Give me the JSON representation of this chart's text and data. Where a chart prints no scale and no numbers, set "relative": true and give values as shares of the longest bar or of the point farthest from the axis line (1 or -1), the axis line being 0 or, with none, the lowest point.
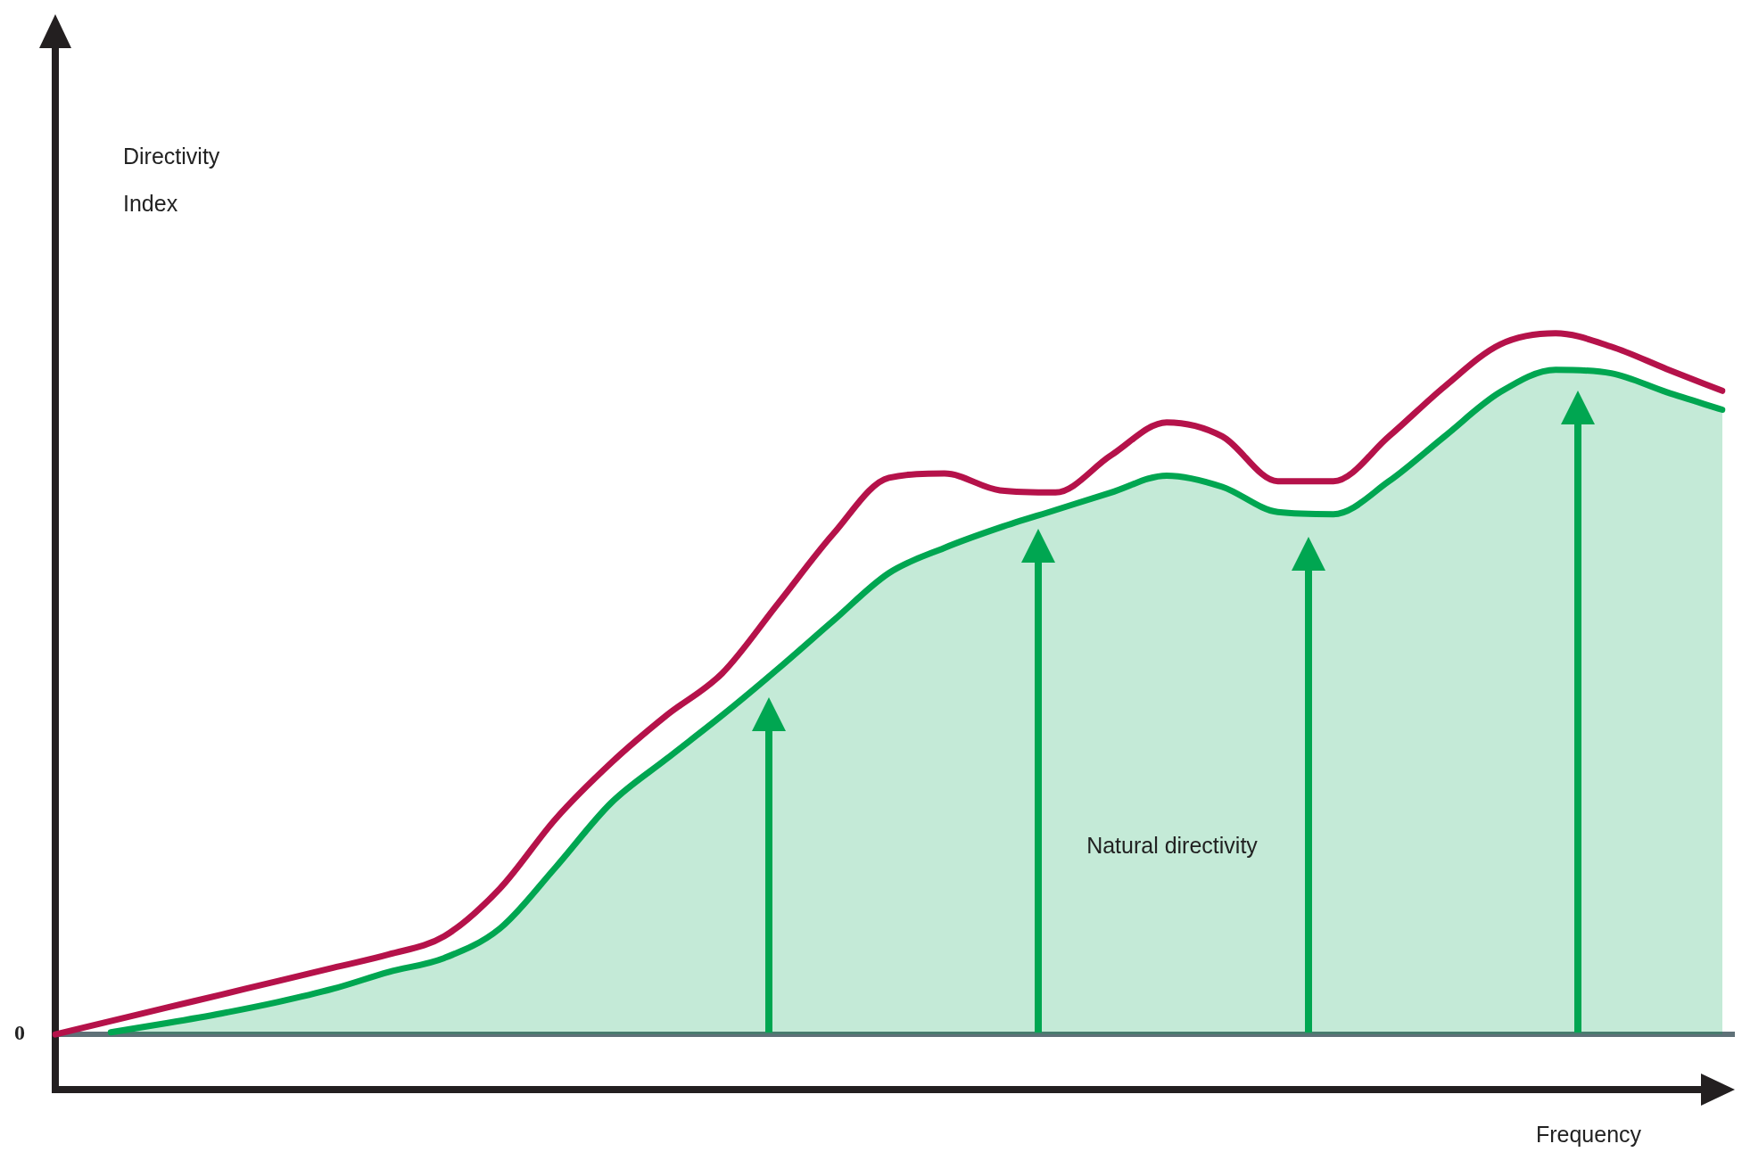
{
  "chart_data": {
    "type": "line",
    "relative": true,
    "xlabel": "Frequency",
    "categories": [
      null,
      null,
      null,
      null,
      null,
      null,
      null,
      null,
      null,
      null,
      null,
      null,
      null,
      null,
      null,
      null,
      null,
      null,
      null,
      null,
      null,
      null,
      null,
      null,
      null,
      null,
      null,
      null,
      null,
      null,
      null
    ],
    "series": [
      {
        "type": "area",
        "color": "#00a651",
        "values": [
          null,
          0.003,
          0.016,
          0.03,
          0.046,
          0.065,
          0.089,
          0.109,
          0.151,
          0.238,
          0.33,
          0.393,
          0.455,
          0.521,
          0.59,
          0.658,
          0.694,
          0.723,
          0.748,
          0.773,
          0.797,
          0.781,
          0.745,
          0.742,
          0.789,
          0.853,
          0.916,
          0.948,
          0.943,
          0.916,
          0.891
        ]
      },
      {
        "color": "#b5124a",
        "values": [
          0,
          0.019,
          0.038,
          0.057,
          0.076,
          0.095,
          0.114,
          0.14,
          0.208,
          0.307,
          0.387,
          0.455,
          0.515,
          0.614,
          0.714,
          0.794,
          0.8,
          0.776,
          0.773,
          0.826,
          0.873,
          0.853,
          0.789,
          0.789,
          0.853,
          0.924,
          0.984,
          1,
          0.981,
          0.949,
          0.918
        ]
      }
    ],
    "ref_lines": [
      {
        "axis": "y",
        "value": 0,
        "label": "0",
        "color": "#5f7178"
      }
    ],
    "annotations": [
      "Directivity Index",
      "Natural directivity"
    ],
    "legend": false,
    "marker": "none",
    "line_style": "solid"
  }
}
